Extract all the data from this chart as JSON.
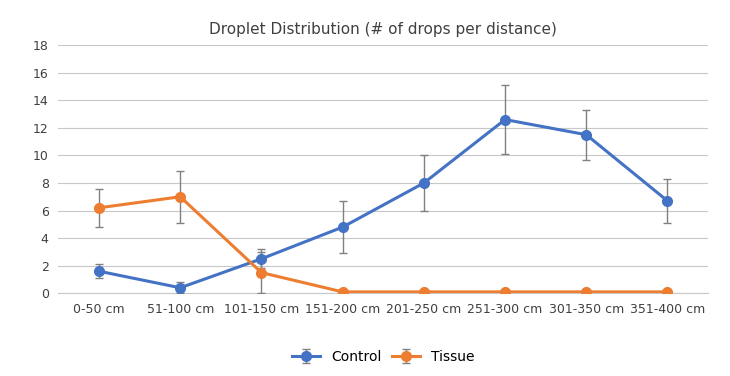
{
  "title": "Droplet Distribution (# of drops per distance)",
  "categories": [
    "0-50 cm",
    "51-100 cm",
    "101-150 cm",
    "151-200 cm",
    "201-250 cm",
    "251-300 cm",
    "301-350 cm",
    "351-400 cm"
  ],
  "control_values": [
    1.6,
    0.4,
    2.5,
    4.8,
    8.0,
    12.6,
    11.5,
    6.7
  ],
  "control_errors": [
    0.5,
    0.4,
    0.7,
    1.9,
    2.0,
    2.5,
    1.8,
    1.6
  ],
  "tissue_values": [
    6.2,
    7.0,
    1.5,
    0.1,
    0.1,
    0.1,
    0.1,
    0.1
  ],
  "tissue_errors": [
    1.4,
    1.9,
    1.5,
    0.15,
    0.15,
    0.15,
    0.15,
    0.15
  ],
  "control_color": "#4472C4",
  "tissue_color": "#ED7D31",
  "errorbar_color": "#808080",
  "ylim": [
    0,
    18
  ],
  "yticks": [
    0,
    2,
    4,
    6,
    8,
    10,
    12,
    14,
    16,
    18
  ],
  "legend_labels": [
    "Control",
    "Tissue"
  ],
  "background_color": "#ffffff",
  "grid_color": "#c8c8c8",
  "title_fontsize": 11,
  "tick_fontsize": 9
}
